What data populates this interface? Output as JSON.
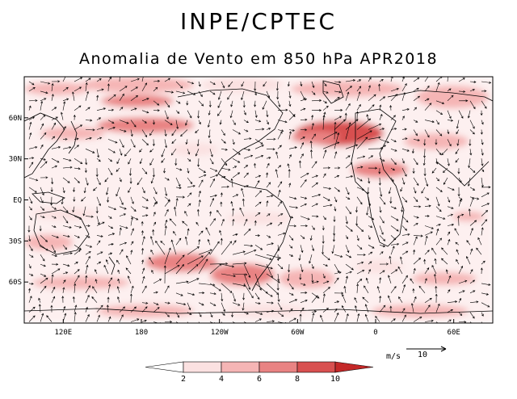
{
  "header": {
    "title": "INPE/CPTEC",
    "subtitle": "Anomalia de Vento em 850 hPa APR2018"
  },
  "map": {
    "description_variable": "850 hPa wind anomaly",
    "lat_ticks": [
      {
        "label": "60N",
        "lat": 60
      },
      {
        "label": "30N",
        "lat": 30
      },
      {
        "label": "EQ",
        "lat": 0
      },
      {
        "label": "30S",
        "lat": -30
      },
      {
        "label": "60S",
        "lat": -60
      }
    ],
    "lon_ticks": [
      {
        "label": "120E",
        "lon": 120
      },
      {
        "label": "180",
        "lon": 180
      },
      {
        "label": "120W",
        "lon": 240
      },
      {
        "label": "60W",
        "lon": 300
      },
      {
        "label": "0",
        "lon": 360
      },
      {
        "label": "60E",
        "lon": 420
      }
    ],
    "extent": {
      "lon_min": 90,
      "lon_max": 450,
      "lat_min": -90,
      "lat_max": 90
    }
  },
  "colorbar": {
    "labels": [
      "2",
      "4",
      "6",
      "8",
      "10"
    ],
    "colors": [
      "#ffffff",
      "#fbe1e1",
      "#f5b5b5",
      "#e98383",
      "#d85050",
      "#c42828"
    ]
  },
  "reference_vector": {
    "units": "m/s",
    "value": "10"
  },
  "colors": {
    "line": "#000000",
    "background": "#ffffff"
  }
}
